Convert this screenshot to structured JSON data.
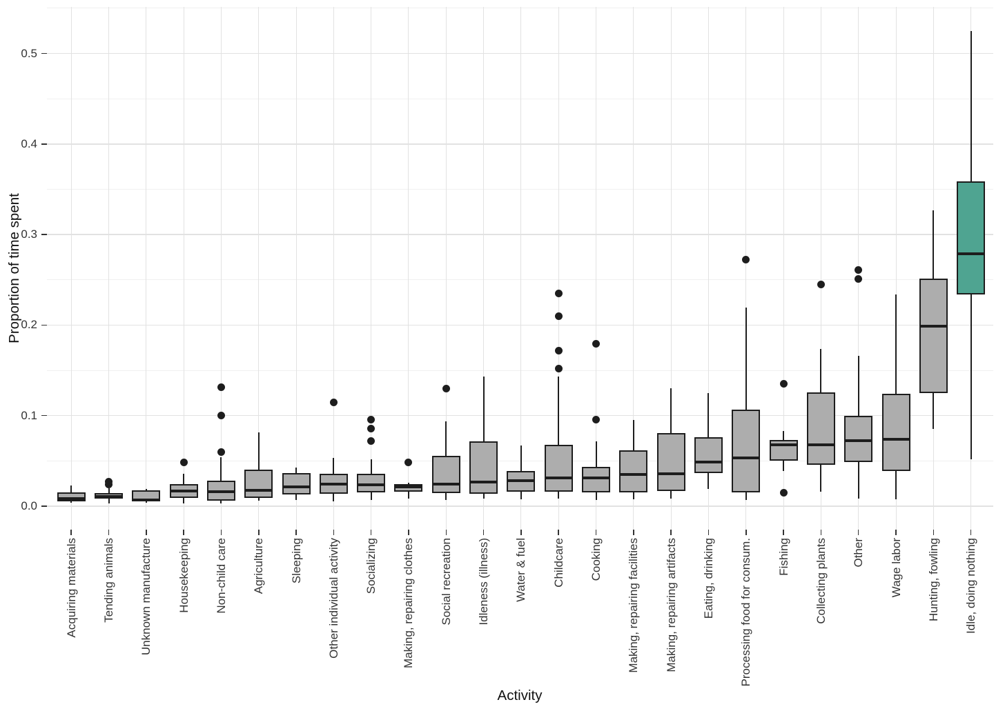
{
  "chart_data": {
    "type": "boxplot",
    "title": "",
    "xlabel": "Activity",
    "ylabel": "Proportion of time spent",
    "ylim": [
      -0.026,
      0.551
    ],
    "ytick_labels": [
      "0.0",
      "0.1",
      "0.2",
      "0.3",
      "0.4",
      "0.5"
    ],
    "ytick_values": [
      0.0,
      0.1,
      0.2,
      0.3,
      0.4,
      0.5
    ],
    "minor_gridline_values": [
      0.05,
      0.15,
      0.25,
      0.35,
      0.45,
      0.55
    ],
    "grid": "on",
    "legend": null,
    "colors": {
      "box_fill": "#ADADAD",
      "highlight_fill": "#4FA491",
      "stroke": "#1D1D1D",
      "grid_major": "#E2E2E2",
      "grid_minor": "#F0F0F0",
      "tick_text": "#333333",
      "title_text": "#111111",
      "background": "#FFFFFF"
    },
    "series": [
      {
        "label": "Acquiring materials",
        "low": 0.004,
        "q1": 0.005,
        "median": 0.008,
        "q3": 0.015,
        "high": 0.023,
        "outliers": [],
        "highlight": false
      },
      {
        "label": "Tending animals",
        "low": 0.003,
        "q1": 0.008,
        "median": 0.011,
        "q3": 0.0145,
        "high": 0.0195,
        "outliers": [
          0.024,
          0.027
        ],
        "highlight": false
      },
      {
        "label": "Unknown manufacture",
        "low": 0.004,
        "q1": 0.005,
        "median": 0.007,
        "q3": 0.0175,
        "high": 0.019,
        "outliers": [],
        "highlight": false
      },
      {
        "label": "Housekeeping",
        "low": 0.003,
        "q1": 0.0095,
        "median": 0.0165,
        "q3": 0.0245,
        "high": 0.036,
        "outliers": [
          0.048
        ],
        "highlight": false
      },
      {
        "label": "Non-child care",
        "low": 0.003,
        "q1": 0.006,
        "median": 0.016,
        "q3": 0.028,
        "high": 0.054,
        "outliers": [
          0.06,
          0.1,
          0.131
        ],
        "highlight": false
      },
      {
        "label": "Agriculture",
        "low": 0.006,
        "q1": 0.0095,
        "median": 0.0175,
        "q3": 0.04,
        "high": 0.0815,
        "outliers": [],
        "highlight": false
      },
      {
        "label": "Sleeping",
        "low": 0.0065,
        "q1": 0.013,
        "median": 0.021,
        "q3": 0.0365,
        "high": 0.0425,
        "outliers": [],
        "highlight": false
      },
      {
        "label": "Other individual activity",
        "low": 0.005,
        "q1": 0.0135,
        "median": 0.024,
        "q3": 0.0355,
        "high": 0.053,
        "outliers": [
          0.115
        ],
        "highlight": false
      },
      {
        "label": "Socializing",
        "low": 0.0065,
        "q1": 0.015,
        "median": 0.0235,
        "q3": 0.0355,
        "high": 0.052,
        "outliers": [
          0.072,
          0.0855,
          0.0955
        ],
        "highlight": false
      },
      {
        "label": "Making, repairing clothes",
        "low": 0.0085,
        "q1": 0.016,
        "median": 0.021,
        "q3": 0.0245,
        "high": 0.026,
        "outliers": [
          0.048
        ],
        "highlight": false
      },
      {
        "label": "Social recreation",
        "low": 0.0065,
        "q1": 0.0145,
        "median": 0.0245,
        "q3": 0.0555,
        "high": 0.094,
        "outliers": [
          0.1295
        ],
        "highlight": false
      },
      {
        "label": "Idleness (illness)",
        "low": 0.008,
        "q1": 0.0135,
        "median": 0.027,
        "q3": 0.0715,
        "high": 0.143,
        "outliers": [],
        "highlight": false
      },
      {
        "label": "Water & fuel",
        "low": 0.0075,
        "q1": 0.016,
        "median": 0.0285,
        "q3": 0.0385,
        "high": 0.067,
        "outliers": [],
        "highlight": false
      },
      {
        "label": "Childcare",
        "low": 0.008,
        "q1": 0.016,
        "median": 0.031,
        "q3": 0.068,
        "high": 0.143,
        "outliers": [
          0.152,
          0.172,
          0.21,
          0.235
        ],
        "highlight": false
      },
      {
        "label": "Cooking",
        "low": 0.0065,
        "q1": 0.015,
        "median": 0.0315,
        "q3": 0.0435,
        "high": 0.0715,
        "outliers": [
          0.0955,
          0.1795
        ],
        "highlight": false
      },
      {
        "label": "Making, repairing facilities",
        "low": 0.0075,
        "q1": 0.015,
        "median": 0.035,
        "q3": 0.0615,
        "high": 0.095,
        "outliers": [],
        "highlight": false
      },
      {
        "label": "Making, repairing artifacts",
        "low": 0.0085,
        "q1": 0.017,
        "median": 0.0355,
        "q3": 0.0805,
        "high": 0.13,
        "outliers": [],
        "highlight": false
      },
      {
        "label": "Eating, drinking",
        "low": 0.019,
        "q1": 0.0365,
        "median": 0.0485,
        "q3": 0.0765,
        "high": 0.125,
        "outliers": [],
        "highlight": false
      },
      {
        "label": "Processing food for consum.",
        "low": 0.0065,
        "q1": 0.015,
        "median": 0.053,
        "q3": 0.1065,
        "high": 0.2195,
        "outliers": [
          0.272
        ],
        "highlight": false
      },
      {
        "label": "Fishing",
        "low": 0.039,
        "q1": 0.05,
        "median": 0.0675,
        "q3": 0.073,
        "high": 0.083,
        "outliers": [
          0.0152,
          0.135
        ],
        "highlight": false
      },
      {
        "label": "Collecting plants",
        "low": 0.016,
        "q1": 0.046,
        "median": 0.068,
        "q3": 0.126,
        "high": 0.174,
        "outliers": [
          0.245
        ],
        "highlight": false
      },
      {
        "label": "Other",
        "low": 0.0085,
        "q1": 0.0485,
        "median": 0.072,
        "q3": 0.1,
        "high": 0.166,
        "outliers": [
          0.251,
          0.261
        ],
        "highlight": false
      },
      {
        "label": "Wage labor",
        "low": 0.0075,
        "q1": 0.0385,
        "median": 0.074,
        "q3": 0.1245,
        "high": 0.2335,
        "outliers": [],
        "highlight": false
      },
      {
        "label": "Hunting, fowling",
        "low": 0.085,
        "q1": 0.125,
        "median": 0.1985,
        "q3": 0.251,
        "high": 0.327,
        "outliers": [],
        "highlight": false
      },
      {
        "label": "Idle, doing nothing",
        "low": 0.052,
        "q1": 0.2335,
        "median": 0.2785,
        "q3": 0.3585,
        "high": 0.525,
        "outliers": [],
        "highlight": true
      }
    ]
  }
}
